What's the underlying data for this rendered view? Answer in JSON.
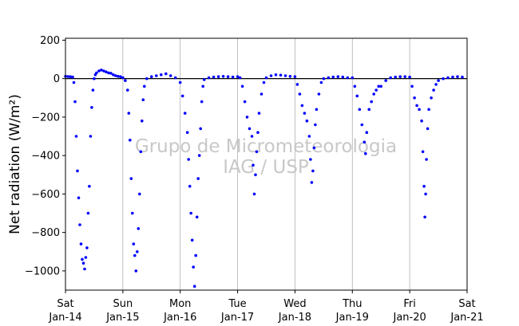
{
  "chart_data": {
    "type": "scatter",
    "title": "",
    "xlabel": "",
    "ylabel": "Net radiation (W/m²)",
    "watermark_lines": [
      "Grupo de Micrometeorologia",
      "IAG / USP"
    ],
    "ylim": [
      -1100,
      210
    ],
    "yticks": [
      200,
      0,
      -200,
      -400,
      -600,
      -800,
      -1000
    ],
    "ytick_labels": [
      "200",
      "0",
      "−200",
      "−400",
      "−600",
      "−800",
      "−1000"
    ],
    "xlim_days": [
      "Sat Jan-14",
      "Sat Jan-21"
    ],
    "xticks": [
      {
        "day": "Sat",
        "date": "Jan-14"
      },
      {
        "day": "Sun",
        "date": "Jan-15"
      },
      {
        "day": "Mon",
        "date": "Jan-16"
      },
      {
        "day": "Tue",
        "date": "Jan-17"
      },
      {
        "day": "Wed",
        "date": "Jan-18"
      },
      {
        "day": "Thu",
        "date": "Jan-19"
      },
      {
        "day": "Fri",
        "date": "Jan-20"
      },
      {
        "day": "Sat",
        "date": "Jan-21"
      }
    ],
    "grid": "vertical at day ticks",
    "reference_line_y": 0,
    "colors": {
      "points": "#0000ff",
      "grid": "#b0b0b0",
      "zero_line": "#000000",
      "watermark": "#c8c8c8"
    },
    "series": [
      {
        "points": [
          [
            "Jan-14 00:00",
            12
          ],
          [
            "Jan-14 01:00",
            11
          ],
          [
            "Jan-14 02:00",
            10
          ],
          [
            "Jan-14 03:00",
            8
          ],
          [
            "Jan-14 03:30",
            -20
          ],
          [
            "Jan-14 04:00",
            -120
          ],
          [
            "Jan-14 04:30",
            -300
          ],
          [
            "Jan-14 05:00",
            -480
          ],
          [
            "Jan-14 05:30",
            -620
          ],
          [
            "Jan-14 06:00",
            -760
          ],
          [
            "Jan-14 06:30",
            -860
          ],
          [
            "Jan-14 07:00",
            -940
          ],
          [
            "Jan-14 07:30",
            -960
          ],
          [
            "Jan-14 08:00",
            -990
          ],
          [
            "Jan-14 08:30",
            -930
          ],
          [
            "Jan-14 09:00",
            -880
          ],
          [
            "Jan-14 09:30",
            -700
          ],
          [
            "Jan-14 10:00",
            -560
          ],
          [
            "Jan-14 10:30",
            -300
          ],
          [
            "Jan-14 11:00",
            -150
          ],
          [
            "Jan-14 11:30",
            -60
          ],
          [
            "Jan-14 12:00",
            0
          ],
          [
            "Jan-14 12:30",
            20
          ],
          [
            "Jan-14 13:00",
            30
          ],
          [
            "Jan-14 14:00",
            40
          ],
          [
            "Jan-14 15:00",
            45
          ],
          [
            "Jan-14 16:00",
            40
          ],
          [
            "Jan-14 17:00",
            35
          ],
          [
            "Jan-14 18:00",
            30
          ],
          [
            "Jan-14 19:00",
            28
          ],
          [
            "Jan-14 20:00",
            20
          ],
          [
            "Jan-14 21:00",
            15
          ],
          [
            "Jan-14 22:00",
            12
          ],
          [
            "Jan-14 23:00",
            10
          ],
          [
            "Jan-15 00:00",
            5
          ],
          [
            "Jan-15 01:00",
            -10
          ],
          [
            "Jan-15 02:00",
            -60
          ],
          [
            "Jan-15 02:30",
            -180
          ],
          [
            "Jan-15 03:00",
            -320
          ],
          [
            "Jan-15 03:30",
            -520
          ],
          [
            "Jan-15 04:00",
            -700
          ],
          [
            "Jan-15 04:30",
            -860
          ],
          [
            "Jan-15 05:00",
            -920
          ],
          [
            "Jan-15 05:30",
            -1000
          ],
          [
            "Jan-15 06:00",
            -900
          ],
          [
            "Jan-15 06:30",
            -780
          ],
          [
            "Jan-15 07:00",
            -600
          ],
          [
            "Jan-15 07:30",
            -380
          ],
          [
            "Jan-15 08:00",
            -220
          ],
          [
            "Jan-15 08:30",
            -110
          ],
          [
            "Jan-15 09:00",
            -40
          ],
          [
            "Jan-15 10:00",
            0
          ],
          [
            "Jan-15 12:00",
            10
          ],
          [
            "Jan-15 14:00",
            15
          ],
          [
            "Jan-15 16:00",
            20
          ],
          [
            "Jan-15 18:00",
            25
          ],
          [
            "Jan-15 20:00",
            15
          ],
          [
            "Jan-15 22:00",
            5
          ],
          [
            "Jan-16 00:00",
            -20
          ],
          [
            "Jan-16 01:00",
            -90
          ],
          [
            "Jan-16 02:00",
            -180
          ],
          [
            "Jan-16 03:00",
            -280
          ],
          [
            "Jan-16 03:30",
            -420
          ],
          [
            "Jan-16 04:00",
            -560
          ],
          [
            "Jan-16 04:30",
            -700
          ],
          [
            "Jan-16 05:00",
            -840
          ],
          [
            "Jan-16 05:30",
            -980
          ],
          [
            "Jan-16 06:00",
            -1080
          ],
          [
            "Jan-16 06:30",
            -920
          ],
          [
            "Jan-16 07:00",
            -720
          ],
          [
            "Jan-16 07:30",
            -520
          ],
          [
            "Jan-16 08:00",
            -400
          ],
          [
            "Jan-16 08:30",
            -260
          ],
          [
            "Jan-16 09:00",
            -120
          ],
          [
            "Jan-16 09:30",
            -40
          ],
          [
            "Jan-16 10:00",
            -5
          ],
          [
            "Jan-16 12:00",
            5
          ],
          [
            "Jan-16 14:00",
            8
          ],
          [
            "Jan-16 16:00",
            10
          ],
          [
            "Jan-16 18:00",
            12
          ],
          [
            "Jan-16 20:00",
            10
          ],
          [
            "Jan-16 22:00",
            8
          ],
          [
            "Jan-17 00:00",
            10
          ],
          [
            "Jan-17 01:00",
            5
          ],
          [
            "Jan-17 02:00",
            -40
          ],
          [
            "Jan-17 03:00",
            -120
          ],
          [
            "Jan-17 04:00",
            -200
          ],
          [
            "Jan-17 05:00",
            -260
          ],
          [
            "Jan-17 06:00",
            -300
          ],
          [
            "Jan-17 06:30",
            -450
          ],
          [
            "Jan-17 07:00",
            -600
          ],
          [
            "Jan-17 07:30",
            -500
          ],
          [
            "Jan-17 08:00",
            -380
          ],
          [
            "Jan-17 08:30",
            -280
          ],
          [
            "Jan-17 09:00",
            -180
          ],
          [
            "Jan-17 10:00",
            -80
          ],
          [
            "Jan-17 11:00",
            -20
          ],
          [
            "Jan-17 12:00",
            5
          ],
          [
            "Jan-17 14:00",
            15
          ],
          [
            "Jan-17 16:00",
            20
          ],
          [
            "Jan-17 18:00",
            18
          ],
          [
            "Jan-17 20:00",
            15
          ],
          [
            "Jan-17 22:00",
            12
          ],
          [
            "Jan-18 00:00",
            10
          ],
          [
            "Jan-18 01:00",
            -30
          ],
          [
            "Jan-18 02:00",
            -80
          ],
          [
            "Jan-18 03:00",
            -140
          ],
          [
            "Jan-18 04:00",
            -180
          ],
          [
            "Jan-18 05:00",
            -220
          ],
          [
            "Jan-18 06:00",
            -300
          ],
          [
            "Jan-18 06:30",
            -420
          ],
          [
            "Jan-18 07:00",
            -540
          ],
          [
            "Jan-18 07:30",
            -480
          ],
          [
            "Jan-18 08:00",
            -360
          ],
          [
            "Jan-18 08:30",
            -240
          ],
          [
            "Jan-18 09:00",
            -160
          ],
          [
            "Jan-18 10:00",
            -80
          ],
          [
            "Jan-18 11:00",
            -20
          ],
          [
            "Jan-18 12:00",
            0
          ],
          [
            "Jan-18 14:00",
            5
          ],
          [
            "Jan-18 16:00",
            8
          ],
          [
            "Jan-18 18:00",
            10
          ],
          [
            "Jan-18 20:00",
            8
          ],
          [
            "Jan-18 22:00",
            5
          ],
          [
            "Jan-19 00:00",
            5
          ],
          [
            "Jan-19 01:00",
            -40
          ],
          [
            "Jan-19 02:00",
            -90
          ],
          [
            "Jan-19 03:00",
            -160
          ],
          [
            "Jan-19 04:00",
            -240
          ],
          [
            "Jan-19 05:00",
            -330
          ],
          [
            "Jan-19 05:30",
            -390
          ],
          [
            "Jan-19 06:00",
            -280
          ],
          [
            "Jan-19 07:00",
            -160
          ],
          [
            "Jan-19 08:00",
            -120
          ],
          [
            "Jan-19 09:00",
            -80
          ],
          [
            "Jan-19 10:00",
            -60
          ],
          [
            "Jan-19 11:00",
            -40
          ],
          [
            "Jan-19 12:00",
            -40
          ],
          [
            "Jan-19 14:00",
            -10
          ],
          [
            "Jan-19 16:00",
            5
          ],
          [
            "Jan-19 18:00",
            8
          ],
          [
            "Jan-19 20:00",
            10
          ],
          [
            "Jan-19 22:00",
            10
          ],
          [
            "Jan-20 00:00",
            8
          ],
          [
            "Jan-20 01:00",
            -40
          ],
          [
            "Jan-20 02:00",
            -100
          ],
          [
            "Jan-20 03:00",
            -140
          ],
          [
            "Jan-20 04:00",
            -160
          ],
          [
            "Jan-20 05:00",
            -220
          ],
          [
            "Jan-20 05:30",
            -380
          ],
          [
            "Jan-20 06:00",
            -560
          ],
          [
            "Jan-20 06:20",
            -720
          ],
          [
            "Jan-20 06:40",
            -600
          ],
          [
            "Jan-20 07:00",
            -420
          ],
          [
            "Jan-20 07:30",
            -260
          ],
          [
            "Jan-20 08:00",
            -160
          ],
          [
            "Jan-20 09:00",
            -100
          ],
          [
            "Jan-20 10:00",
            -60
          ],
          [
            "Jan-20 11:00",
            -30
          ],
          [
            "Jan-20 12:00",
            -10
          ],
          [
            "Jan-20 14:00",
            0
          ],
          [
            "Jan-20 16:00",
            5
          ],
          [
            "Jan-20 18:00",
            8
          ],
          [
            "Jan-20 20:00",
            10
          ],
          [
            "Jan-20 22:00",
            8
          ]
        ]
      }
    ]
  }
}
